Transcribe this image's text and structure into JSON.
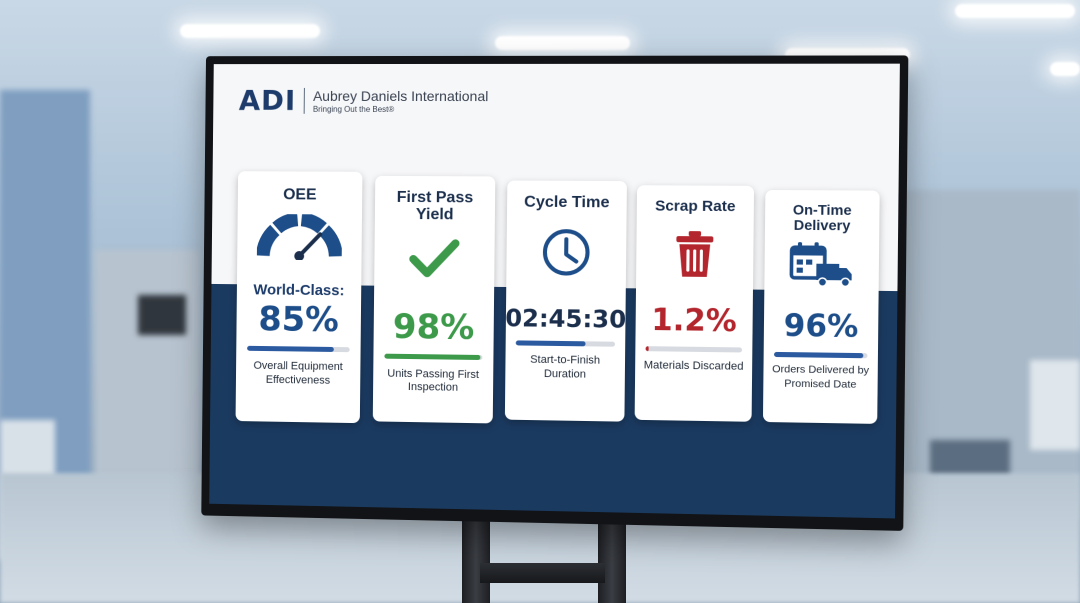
{
  "brand": {
    "logo": "ADI",
    "name": "Aubrey Daniels International",
    "tagline": "Bringing Out the Best®"
  },
  "kpis": [
    {
      "title": "OEE",
      "icon": "gauge-icon",
      "prefix": "World-Class:",
      "value": "85%",
      "value_color": "#1d4e89",
      "progress": 0.85,
      "bar_color": "#2b5aa0",
      "description": "Overall Equipment Effectiveness"
    },
    {
      "title": "First Pass Yield",
      "icon": "checkmark-icon",
      "prefix": "",
      "value": "98%",
      "value_color": "#3c9a4a",
      "progress": 0.98,
      "bar_color": "#3c9a4a",
      "description": "Units Passing First Inspection"
    },
    {
      "title": "Cycle Time",
      "icon": "clock-icon",
      "prefix": "",
      "value": "02:45:30",
      "value_color": "#1b2f4d",
      "progress": 0.7,
      "bar_color": "#2b5aa0",
      "description": "Start-to-Finish Duration"
    },
    {
      "title": "Scrap Rate",
      "icon": "trash-icon",
      "prefix": "",
      "value": "1.2%",
      "value_color": "#b3262d",
      "progress": 0.03,
      "bar_color": "#b3262d",
      "description": "Materials Discarded"
    },
    {
      "title": "On-Time Delivery",
      "icon": "calendar-truck-icon",
      "prefix": "",
      "value": "96%",
      "value_color": "#1d4e89",
      "progress": 0.96,
      "bar_color": "#2b5aa0",
      "description": "Orders Delivered by Promised Date"
    }
  ],
  "colors": {
    "navy": "#1b3a60",
    "screen_top": "#f6f7f9"
  }
}
